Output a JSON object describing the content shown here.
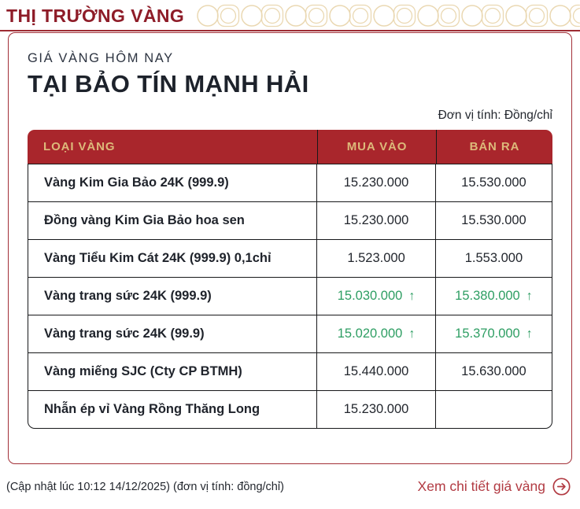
{
  "header": {
    "site_title": "THỊ TRƯỜNG VÀNG"
  },
  "panel": {
    "subtitle": "GIÁ VÀNG HÔM NAY",
    "title": "TẠI BẢO TÍN MẠNH HẢI",
    "unit_note": "Đơn vị tính: Đồng/chỉ"
  },
  "table": {
    "columns": [
      "LOẠI VÀNG",
      "MUA VÀO",
      "BÁN RA"
    ],
    "up_arrow": "↑",
    "rows": [
      {
        "name": "Vàng Kim Gia Bảo 24K (999.9)",
        "buy": "15.230.000",
        "sell": "15.530.000",
        "buy_up": false,
        "sell_up": false
      },
      {
        "name": "Đồng vàng Kim Gia Bảo hoa sen",
        "buy": "15.230.000",
        "sell": "15.530.000",
        "buy_up": false,
        "sell_up": false
      },
      {
        "name": "Vàng Tiểu Kim Cát 24K (999.9) 0,1chỉ",
        "buy": "1.523.000",
        "sell": "1.553.000",
        "buy_up": false,
        "sell_up": false
      },
      {
        "name": "Vàng trang sức 24K (999.9)",
        "buy": "15.030.000",
        "sell": "15.380.000",
        "buy_up": true,
        "sell_up": true
      },
      {
        "name": "Vàng trang sức 24K (99.9)",
        "buy": "15.020.000",
        "sell": "15.370.000",
        "buy_up": true,
        "sell_up": true
      },
      {
        "name": "Vàng miếng SJC (Cty CP BTMH)",
        "buy": "15.440.000",
        "sell": "15.630.000",
        "buy_up": false,
        "sell_up": false
      },
      {
        "name": "Nhẫn ép vỉ Vàng Rồng Thăng Long",
        "buy": "15.230.000",
        "sell": "",
        "buy_up": false,
        "sell_up": false
      }
    ]
  },
  "footer": {
    "update_note": "(Cập nhật lúc 10:12 14/12/2025) (đơn vị tính: đồng/chỉ)",
    "detail_link_label": "Xem chi tiết giá vàng"
  },
  "colors": {
    "accent_red": "#a9262c",
    "dark_red_title": "#8e1c28",
    "gold_text": "#ddb97a",
    "coin_pattern_gold": "#ead8b2",
    "green_up": "#2e9e63",
    "border_dark": "#17181a",
    "link_red": "#b23b43"
  }
}
